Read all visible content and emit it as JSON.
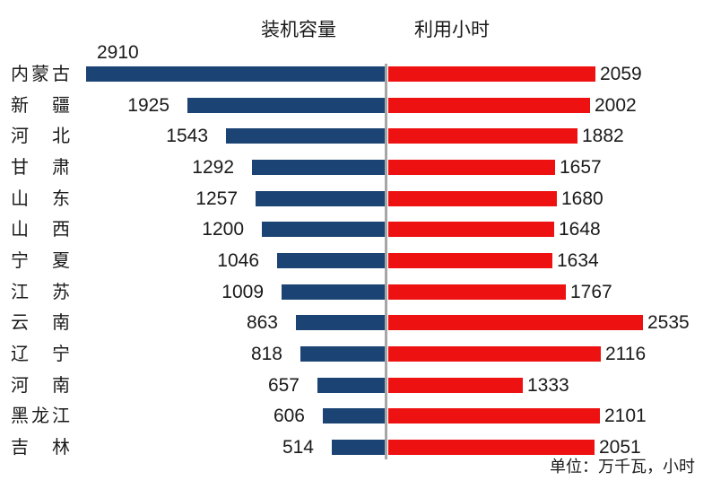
{
  "colors": {
    "capacity_bar": "#1B4373",
    "hours_bar": "#EE1111",
    "divider": "#A6A6A6",
    "text": "#1A1A1A",
    "background": "#FFFFFF"
  },
  "chart_data": {
    "type": "bar",
    "variant": "diverging-tornado",
    "orientation": "horizontal",
    "title": "",
    "legend_position": "top",
    "grid": false,
    "value_labels": "outside-end",
    "categories": [
      "内蒙古",
      "新疆",
      "河北",
      "甘肃",
      "山东",
      "山西",
      "宁夏",
      "江苏",
      "云南",
      "辽宁",
      "河南",
      "黑龙江",
      "吉林"
    ],
    "series": [
      {
        "name": "装机容量",
        "side": "left",
        "color": "#1B4373",
        "values": [
          2910,
          1925,
          1543,
          1292,
          1257,
          1200,
          1046,
          1009,
          863,
          818,
          657,
          606,
          514
        ]
      },
      {
        "name": "利用小时",
        "side": "right",
        "color": "#EE1111",
        "values": [
          2059,
          2002,
          1882,
          1657,
          1680,
          1648,
          1634,
          1767,
          2535,
          2116,
          1333,
          2101,
          2051
        ]
      }
    ],
    "unit_note": "单位：万千瓦，小时"
  }
}
